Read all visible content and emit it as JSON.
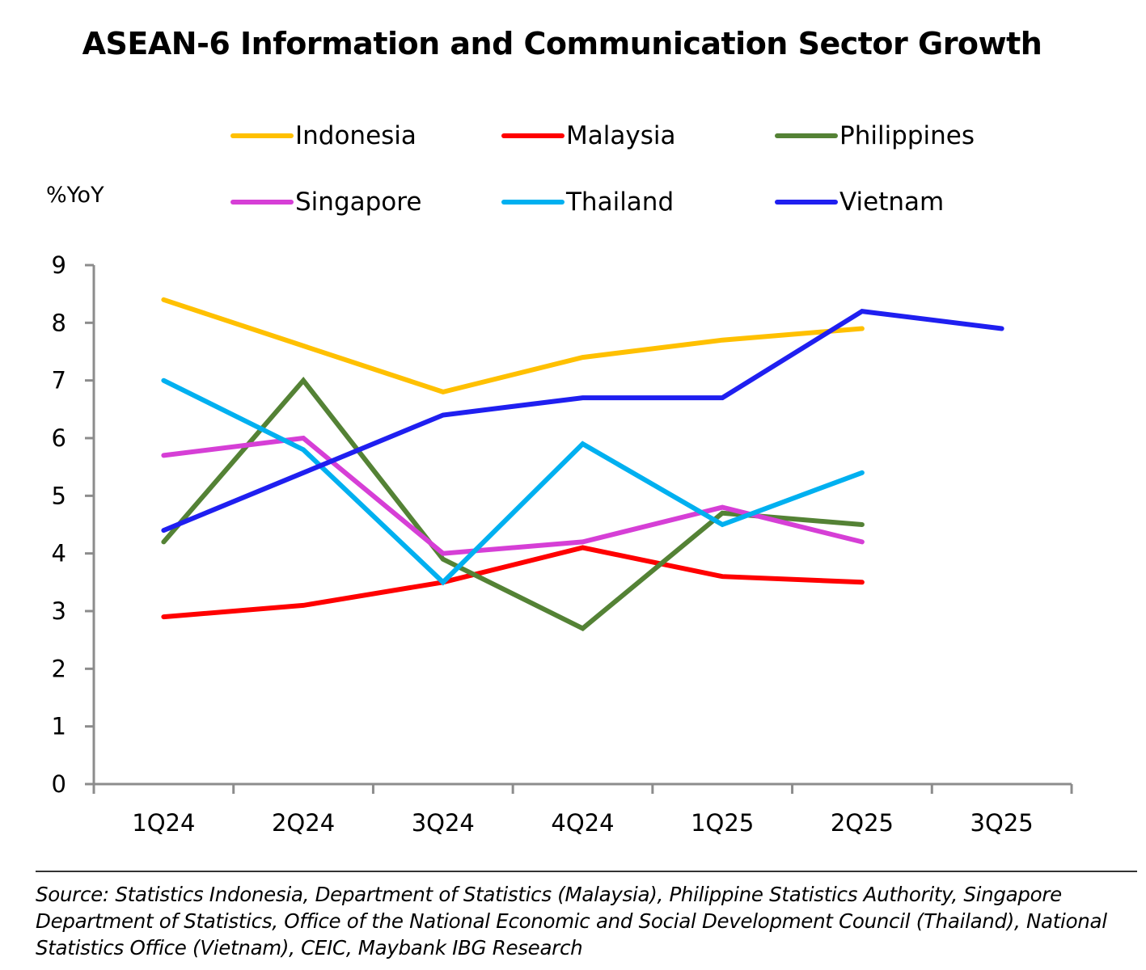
{
  "title": "ASEAN-6 Information and Communication Sector Growth",
  "source": "Source: Statistics Indonesia, Department of Statistics (Malaysia), Philippine Statistics Authority, Singapore Department of Statistics, Office of the National Economic and Social Development Council (Thailand), National Statistics Office (Vietnam), CEIC, Maybank IBG Research",
  "chart_data": {
    "type": "line",
    "title": "ASEAN-6 Information and Communication Sector Growth",
    "xlabel": "",
    "ylabel": "%YoY",
    "categories": [
      "1Q24",
      "2Q24",
      "3Q24",
      "4Q24",
      "1Q25",
      "2Q25",
      "3Q25"
    ],
    "ylim": [
      0,
      9
    ],
    "yticks": [
      0,
      1,
      2,
      3,
      4,
      5,
      6,
      7,
      8,
      9
    ],
    "grid": false,
    "legend_position": "top",
    "series": [
      {
        "name": "Indonesia",
        "color": "#FFC000",
        "values": [
          8.4,
          7.6,
          6.8,
          7.4,
          7.7,
          7.9,
          null
        ]
      },
      {
        "name": "Malaysia",
        "color": "#FF0000",
        "values": [
          2.9,
          3.1,
          3.5,
          4.1,
          3.6,
          3.5,
          null
        ]
      },
      {
        "name": "Philippines",
        "color": "#548235",
        "values": [
          4.2,
          7.0,
          3.9,
          2.7,
          4.7,
          4.5,
          null
        ]
      },
      {
        "name": "Singapore",
        "color": "#D63FD6",
        "values": [
          5.7,
          6.0,
          4.0,
          4.2,
          4.8,
          4.2,
          null
        ]
      },
      {
        "name": "Thailand",
        "color": "#00B0F0",
        "values": [
          7.0,
          5.8,
          3.5,
          5.9,
          4.5,
          5.4,
          null
        ]
      },
      {
        "name": "Vietnam",
        "color": "#1F1FF0",
        "values": [
          4.4,
          5.4,
          6.4,
          6.7,
          6.7,
          8.2,
          7.9
        ]
      }
    ]
  }
}
